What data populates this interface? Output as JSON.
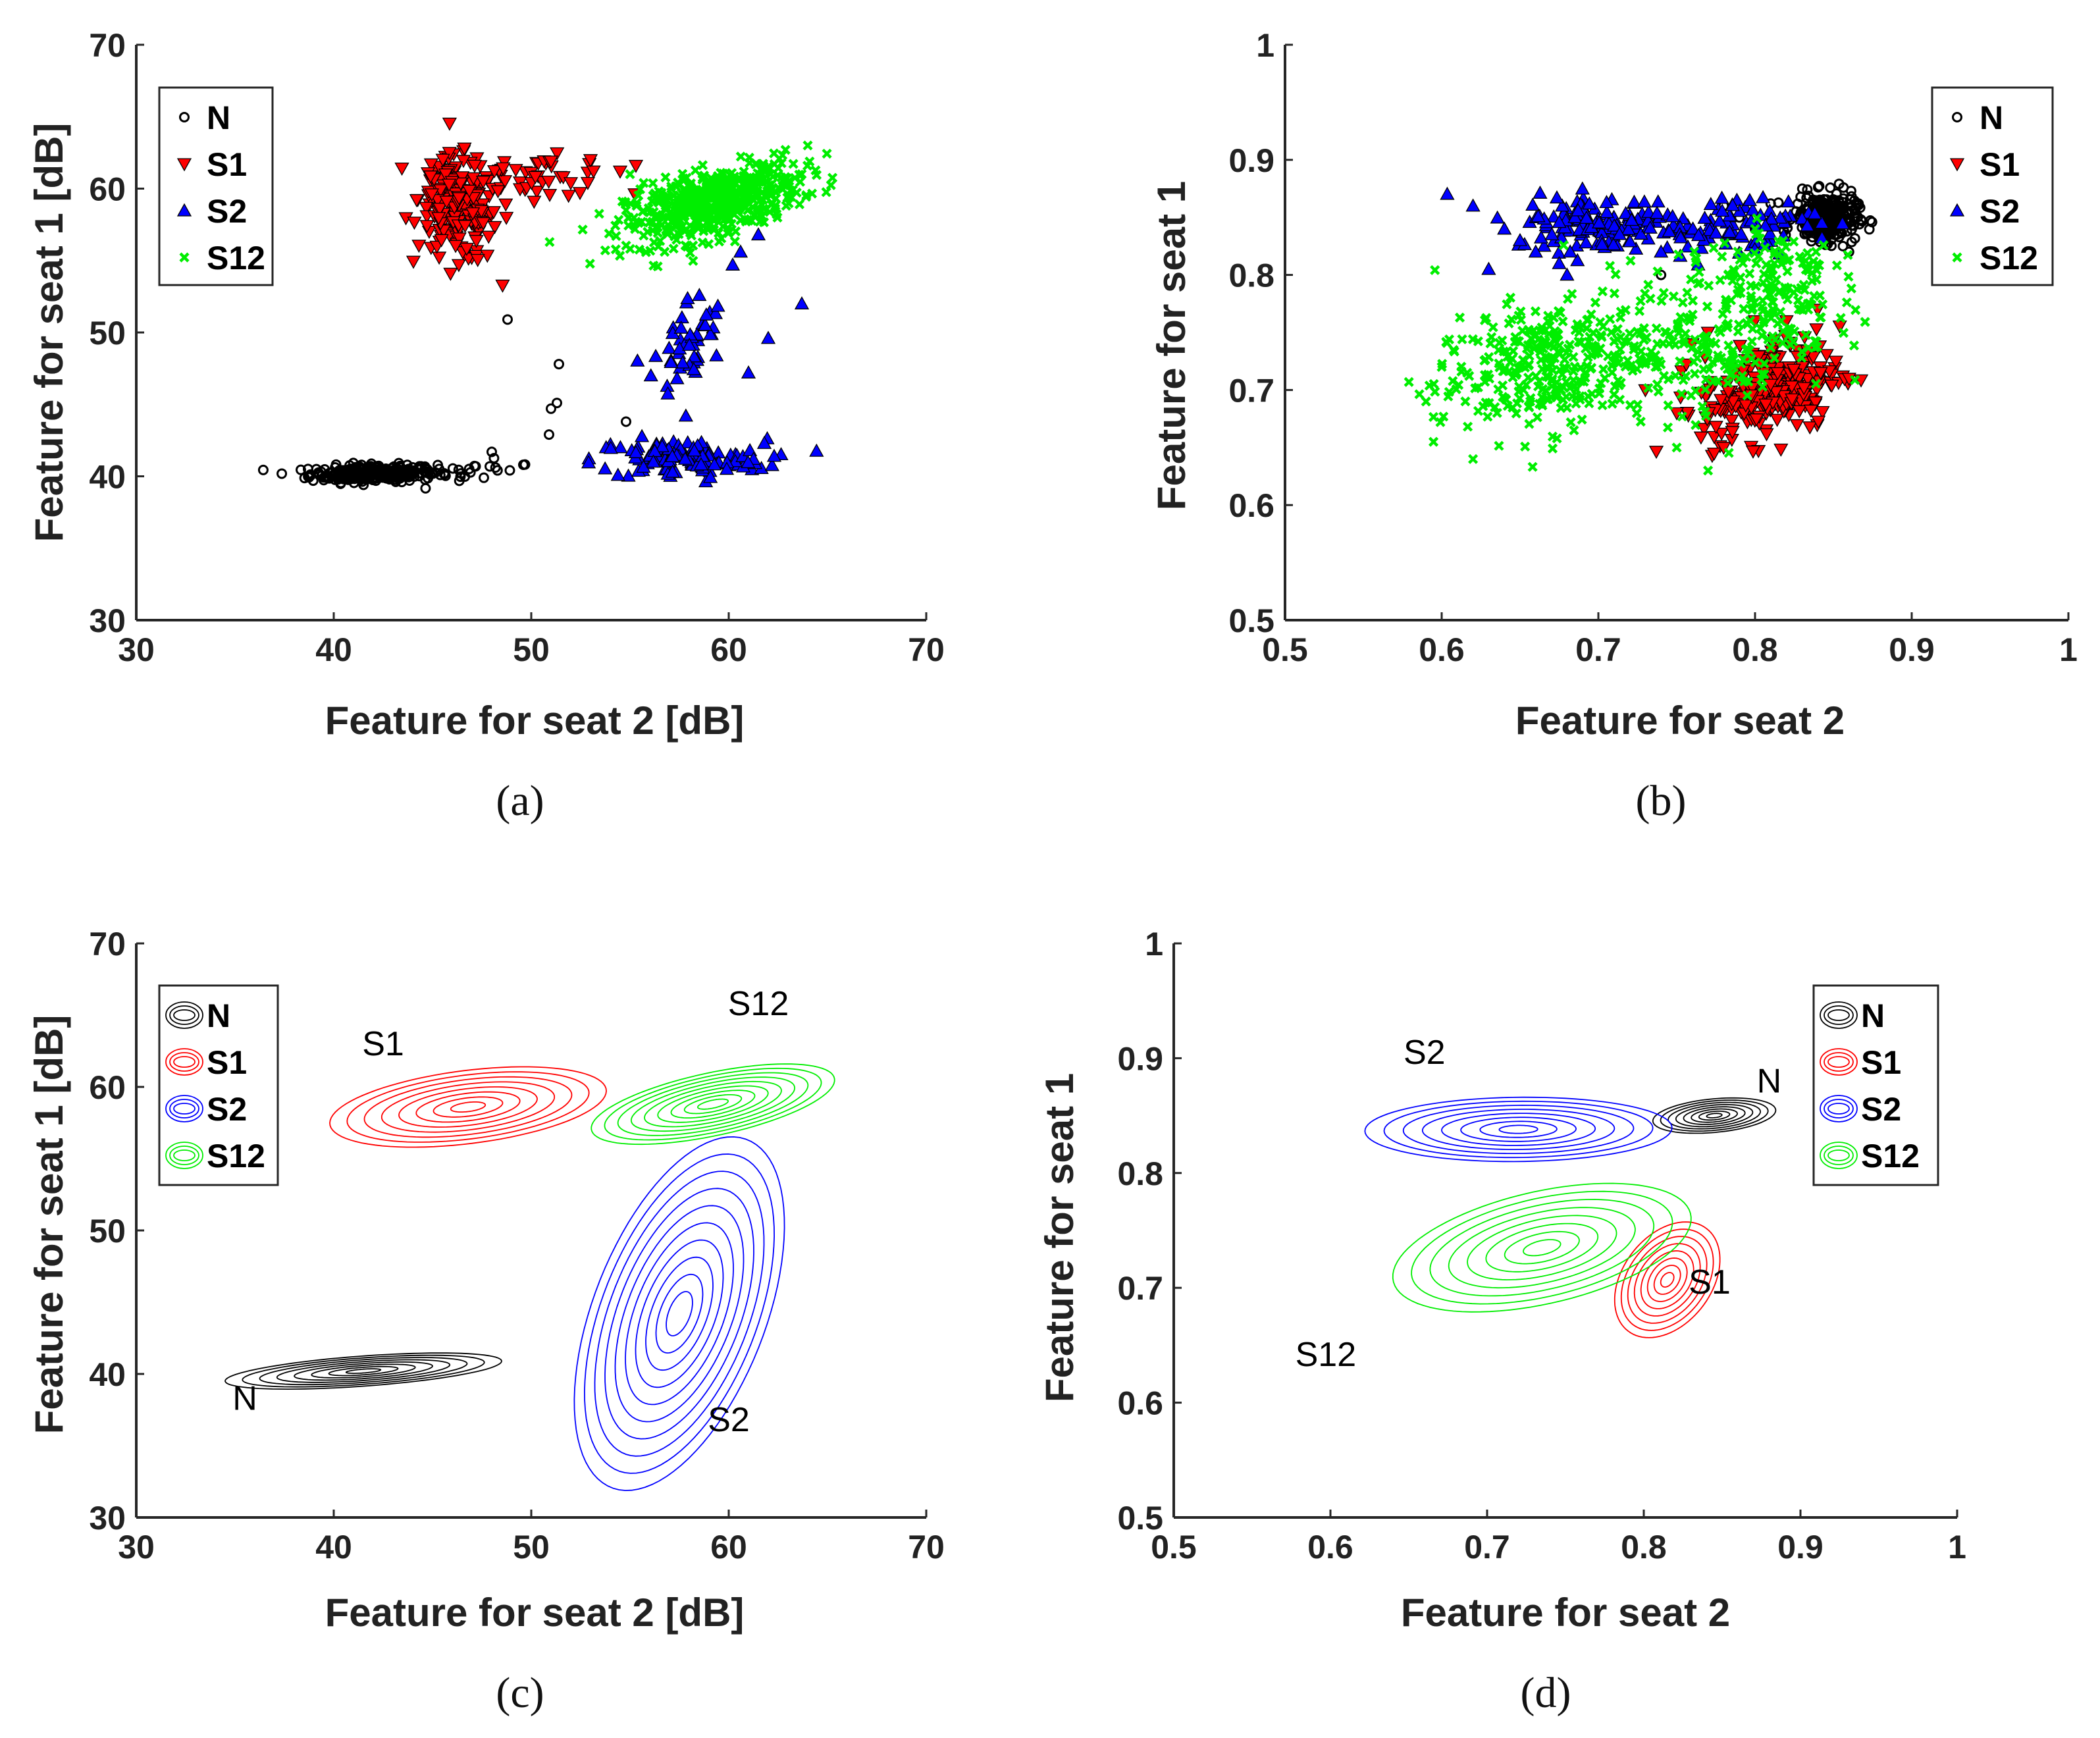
{
  "chart_data": [
    {
      "type": "scatter",
      "id": "a",
      "panel_label": "(a)",
      "xlabel": "Feature for seat 2 [dB]",
      "ylabel": "Feature for seat 1 [dB]",
      "xlim": [
        30,
        70
      ],
      "ylim": [
        30,
        70
      ],
      "xticks": [
        30,
        40,
        50,
        60,
        70
      ],
      "yticks": [
        30,
        40,
        50,
        60,
        70
      ],
      "xtick_labels": [
        "30",
        "40",
        "50",
        "60",
        "70"
      ],
      "ytick_labels": [
        "30",
        "40",
        "50",
        "60",
        "70"
      ],
      "legend": {
        "position": "top-left",
        "entries": [
          "N",
          "S1",
          "S2",
          "S12"
        ]
      },
      "series": [
        {
          "name": "N",
          "marker": "circle",
          "color": "#000000",
          "clusters": [
            {
              "n": 260,
              "cx": 42,
              "cy": 40.2,
              "sx": 1.6,
              "sy": 0.3,
              "rho": 0.1
            },
            {
              "n": 22,
              "cx": 46.5,
              "cy": 40.4,
              "sx": 1.8,
              "sy": 0.35,
              "rho": 0.2
            }
          ],
          "points": [
            [
              48.8,
              50.9
            ],
            [
              51.4,
              47.8
            ],
            [
              51.3,
              45.1
            ],
            [
              51.0,
              44.7
            ],
            [
              50.9,
              42.9
            ],
            [
              54.8,
              43.8
            ],
            [
              48.0,
              41.7
            ],
            [
              49.6,
              40.8
            ],
            [
              47.6,
              39.9
            ]
          ]
        },
        {
          "name": "S1",
          "marker": "triangle-down",
          "color": "#ff0000",
          "clusters": [
            {
              "n": 200,
              "cx": 46.3,
              "cy": 58.6,
              "sx": 1.0,
              "sy": 1.8,
              "rho": -0.2
            },
            {
              "n": 50,
              "cx": 50.0,
              "cy": 60.8,
              "sx": 2.2,
              "sy": 0.7,
              "rho": 0
            }
          ],
          "points": [
            [
              53.0,
              62.0
            ],
            [
              54.5,
              61.2
            ],
            [
              52.0,
              60.4
            ],
            [
              55.3,
              61.6
            ],
            [
              51.0,
              61.9
            ]
          ]
        },
        {
          "name": "S2",
          "marker": "triangle-up",
          "color": "#0000ff",
          "clusters": [
            {
              "n": 120,
              "cx": 57.5,
              "cy": 41.2,
              "sx": 2.2,
              "sy": 0.7,
              "rho": 0
            },
            {
              "n": 50,
              "cx": 58.0,
              "cy": 49.2,
              "sx": 0.9,
              "sy": 1.8,
              "rho": 0.3
            }
          ],
          "points": [
            [
              63.7,
              52.0
            ],
            [
              62.0,
              49.6
            ],
            [
              61.0,
              47.2
            ],
            [
              60.6,
              55.6
            ],
            [
              61.8,
              42.3
            ],
            [
              62.3,
              41.4
            ],
            [
              59.9,
              40.5
            ],
            [
              61.5,
              56.8
            ],
            [
              60.2,
              54.7
            ]
          ]
        },
        {
          "name": "S12",
          "marker": "x",
          "color": "#00ee00",
          "clusters": [
            {
              "n": 520,
              "cx": 59.2,
              "cy": 59.0,
              "sx": 2.2,
              "sy": 1.4,
              "rho": 0.55
            }
          ],
          "points": [
            [
              64.0,
              63.0
            ],
            [
              55.0,
              61.0
            ],
            [
              54.8,
              58.5
            ]
          ]
        }
      ]
    },
    {
      "type": "scatter",
      "id": "b",
      "panel_label": "(b)",
      "xlabel": "Feature for seat 2",
      "ylabel": "Feature for seat 1",
      "xlim": [
        0.5,
        1
      ],
      "ylim": [
        0.5,
        1
      ],
      "xticks": [
        0.5,
        0.6,
        0.7,
        0.8,
        0.9,
        1.0
      ],
      "yticks": [
        0.5,
        0.6,
        0.7,
        0.8,
        0.9,
        1.0
      ],
      "xtick_labels": [
        "0.5",
        "0.6",
        "0.7",
        "0.8",
        "0.9",
        "1"
      ],
      "ytick_labels": [
        "0.5",
        "0.6",
        "0.7",
        "0.8",
        "0.9",
        "1"
      ],
      "legend": {
        "position": "top-right",
        "entries": [
          "N",
          "S1",
          "S2",
          "S12"
        ]
      },
      "series": [
        {
          "name": "N",
          "marker": "circle",
          "color": "#000000",
          "clusters": [
            {
              "n": 300,
              "cx": 0.845,
              "cy": 0.85,
              "sx": 0.01,
              "sy": 0.01,
              "rho": 0
            }
          ],
          "points": [
            [
              0.78,
              0.86
            ],
            [
              0.79,
              0.85
            ],
            [
              0.8,
              0.84
            ],
            [
              0.74,
              0.8
            ],
            [
              0.86,
              0.82
            ],
            [
              0.81,
              0.862
            ]
          ]
        },
        {
          "name": "S1",
          "marker": "triangle-down",
          "color": "#ff0000",
          "clusters": [
            {
              "n": 260,
              "cx": 0.81,
              "cy": 0.7,
              "sx": 0.022,
              "sy": 0.022,
              "rho": 0.3
            }
          ],
          "points": [
            [
              0.82,
              0.76
            ],
            [
              0.77,
              0.75
            ],
            [
              0.76,
              0.74
            ],
            [
              0.84,
              0.77
            ],
            [
              0.73,
              0.7
            ],
            [
              0.75,
              0.68
            ],
            [
              0.78,
              0.65
            ],
            [
              0.86,
              0.71
            ],
            [
              0.8,
              0.76
            ]
          ]
        },
        {
          "name": "S2",
          "marker": "triangle-up",
          "color": "#0000ff",
          "clusters": [
            {
              "n": 150,
              "cx": 0.705,
              "cy": 0.845,
              "sx": 0.03,
              "sy": 0.012,
              "rho": 0
            },
            {
              "n": 70,
              "cx": 0.79,
              "cy": 0.845,
              "sx": 0.025,
              "sy": 0.012,
              "rho": 0
            }
          ],
          "points": [
            [
              0.62,
              0.86
            ],
            [
              0.63,
              0.805
            ],
            [
              0.65,
              0.83
            ],
            [
              0.66,
              0.82
            ],
            [
              0.68,
              0.8
            ],
            [
              0.64,
              0.84
            ],
            [
              0.675,
              0.81
            ],
            [
              0.74,
              0.82
            ]
          ]
        },
        {
          "name": "S12",
          "marker": "x",
          "color": "#00ee00",
          "clusters": [
            {
              "n": 320,
              "cx": 0.665,
              "cy": 0.72,
              "sx": 0.035,
              "sy": 0.03,
              "rho": 0.3
            },
            {
              "n": 220,
              "cx": 0.78,
              "cy": 0.75,
              "sx": 0.035,
              "sy": 0.035,
              "rho": 0.2
            },
            {
              "n": 100,
              "cx": 0.81,
              "cy": 0.8,
              "sx": 0.02,
              "sy": 0.02,
              "rho": 0
            }
          ],
          "points": [
            [
              0.59,
              0.69
            ],
            [
              0.6,
              0.72
            ],
            [
              0.62,
              0.64
            ],
            [
              0.77,
              0.63
            ],
            [
              0.8,
              0.84
            ],
            [
              0.75,
              0.65
            ]
          ]
        }
      ]
    },
    {
      "type": "contour",
      "id": "c",
      "panel_label": "(c)",
      "xlabel": "Feature for seat 2 [dB]",
      "ylabel": "Feature for seat 1 [dB]",
      "xlim": [
        30,
        70
      ],
      "ylim": [
        30,
        70
      ],
      "xticks": [
        30,
        40,
        50,
        60,
        70
      ],
      "yticks": [
        30,
        40,
        50,
        60,
        70
      ],
      "xtick_labels": [
        "30",
        "40",
        "50",
        "60",
        "70"
      ],
      "ytick_labels": [
        "30",
        "40",
        "50",
        "60",
        "70"
      ],
      "legend": {
        "position": "top-left",
        "entries": [
          "N",
          "S1",
          "S2",
          "S12"
        ]
      },
      "series": [
        {
          "name": "N",
          "color": "#000000",
          "mean": [
            41.5,
            40.2
          ],
          "sx": 2.5,
          "sy": 0.45,
          "rho": 0.55,
          "levels": 8,
          "annotation": {
            "text": "N",
            "x": 35.5,
            "y": 37.5
          }
        },
        {
          "name": "S1",
          "color": "#ff0000",
          "mean": [
            46.8,
            58.6
          ],
          "sx": 2.5,
          "sy": 1.0,
          "rho": 0.4,
          "levels": 8,
          "annotation": {
            "text": "S1",
            "x": 42.5,
            "y": 62.2
          }
        },
        {
          "name": "S2",
          "color": "#0000ff",
          "mean": [
            57.5,
            44.2
          ],
          "sx": 1.9,
          "sy": 4.4,
          "rho": 0.5,
          "levels": 10,
          "annotation": {
            "text": "S2",
            "x": 60.0,
            "y": 36.0
          }
        },
        {
          "name": "S12",
          "color": "#00ee00",
          "mean": [
            59.2,
            58.8
          ],
          "sx": 2.2,
          "sy": 1.0,
          "rho": 0.6,
          "levels": 9,
          "annotation": {
            "text": "S12",
            "x": 61.5,
            "y": 65.0
          }
        }
      ]
    },
    {
      "type": "contour",
      "id": "d",
      "panel_label": "(d)",
      "xlabel": "Feature for seat 2",
      "ylabel": "Feature for seat 1",
      "xlim": [
        0.5,
        1
      ],
      "ylim": [
        0.5,
        1
      ],
      "xticks": [
        0.5,
        0.6,
        0.7,
        0.8,
        0.9,
        1.0
      ],
      "yticks": [
        0.5,
        0.6,
        0.7,
        0.8,
        0.9,
        1.0
      ],
      "xtick_labels": [
        "0.5",
        "0.6",
        "0.7",
        "0.8",
        "0.9",
        "1"
      ],
      "ytick_labels": [
        "0.5",
        "0.6",
        "0.7",
        "0.8",
        "0.9",
        "1"
      ],
      "legend": {
        "position": "top-right",
        "entries": [
          "N",
          "S1",
          "S2",
          "S12"
        ]
      },
      "series": [
        {
          "name": "N",
          "color": "#000000",
          "mean": [
            0.845,
            0.85
          ],
          "sx": 0.014,
          "sy": 0.0055,
          "rho": 0.3,
          "levels": 8,
          "annotation": {
            "text": "N",
            "x": 0.88,
            "y": 0.87
          }
        },
        {
          "name": "S1",
          "color": "#ff0000",
          "mean": [
            0.815,
            0.707
          ],
          "sx": 0.012,
          "sy": 0.018,
          "rho": 0.35,
          "levels": 8,
          "annotation": {
            "text": "S1",
            "x": 0.842,
            "y": 0.695
          }
        },
        {
          "name": "S2",
          "color": "#0000ff",
          "mean": [
            0.72,
            0.838
          ],
          "sx": 0.035,
          "sy": 0.01,
          "rho": 0.05,
          "levels": 8,
          "annotation": {
            "text": "S2",
            "x": 0.66,
            "y": 0.895
          }
        },
        {
          "name": "S12",
          "color": "#00ee00",
          "mean": [
            0.735,
            0.735
          ],
          "sx": 0.034,
          "sy": 0.02,
          "rho": 0.45,
          "levels": 8,
          "annotation": {
            "text": "S12",
            "x": 0.597,
            "y": 0.632
          }
        }
      ]
    }
  ]
}
